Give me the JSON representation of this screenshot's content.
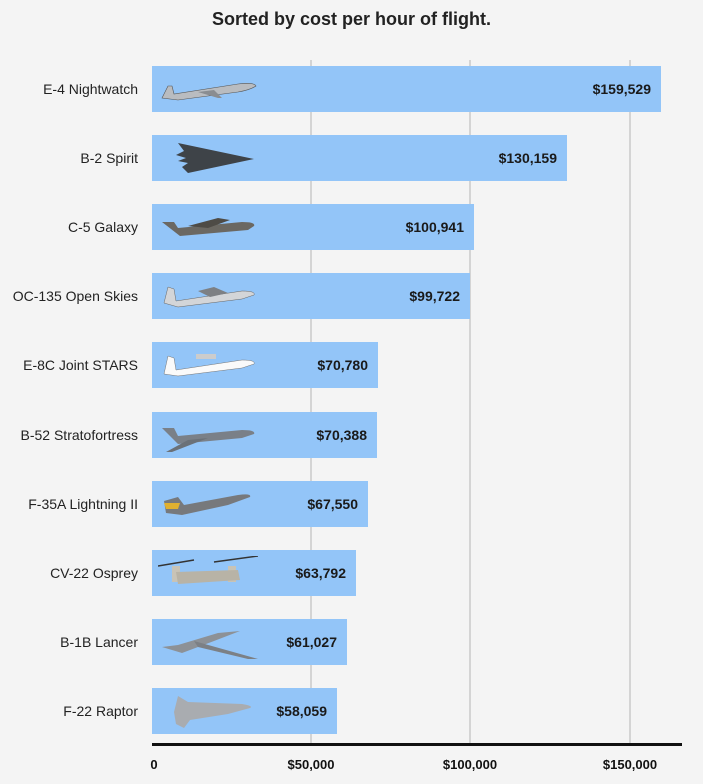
{
  "chart_data": {
    "type": "bar",
    "orientation": "horizontal",
    "title": "Sorted by cost per hour of flight.",
    "xlabel": "",
    "ylabel": "",
    "xlim": [
      0,
      165000
    ],
    "grid": true,
    "x_ticks": [
      "0",
      "$50,000",
      "$100,000",
      "$150,000"
    ],
    "categories": [
      "E-4 Nightwatch",
      "B-2 Spirit",
      "C-5 Galaxy",
      "OC-135 Open Skies",
      "E-8C Joint STARS",
      "B-52 Stratofortress",
      "F-35A Lightning II",
      "CV-22 Osprey",
      "B-1B Lancer",
      "F-22 Raptor"
    ],
    "values": [
      159529,
      130159,
      100941,
      99722,
      70780,
      70388,
      67550,
      63792,
      61027,
      58059
    ],
    "value_labels": [
      "$159,529",
      "$130,159",
      "$100,941",
      "$99,722",
      "$70,780",
      "$70,388",
      "$67,550",
      "$63,792",
      "$61,027",
      "$58,059"
    ],
    "bar_color": "#93c5f8"
  },
  "rows": [
    {
      "label": "E-4 Nightwatch",
      "value": "$159,529",
      "icon": "airliner-icon"
    },
    {
      "label": "B-2 Spirit",
      "value": "$130,159",
      "icon": "stealth-bomber-icon"
    },
    {
      "label": "C-5 Galaxy",
      "value": "$100,941",
      "icon": "cargo-plane-icon"
    },
    {
      "label": "OC-135 Open Skies",
      "value": "$99,722",
      "icon": "jet-transport-icon"
    },
    {
      "label": "E-8C Joint STARS",
      "value": "$70,780",
      "icon": "surveillance-jet-icon"
    },
    {
      "label": "B-52 Stratofortress",
      "value": "$70,388",
      "icon": "bomber-icon"
    },
    {
      "label": "F-35A Lightning II",
      "value": "$67,550",
      "icon": "fighter-jet-icon"
    },
    {
      "label": "CV-22 Osprey",
      "value": "$63,792",
      "icon": "tiltrotor-icon"
    },
    {
      "label": "B-1B Lancer",
      "value": "$61,027",
      "icon": "swing-wing-bomber-icon"
    },
    {
      "label": "F-22 Raptor",
      "value": "$58,059",
      "icon": "fighter-jet-icon"
    }
  ],
  "axis": {
    "ticks": [
      "0",
      "$50,000",
      "$100,000",
      "$150,000"
    ]
  }
}
